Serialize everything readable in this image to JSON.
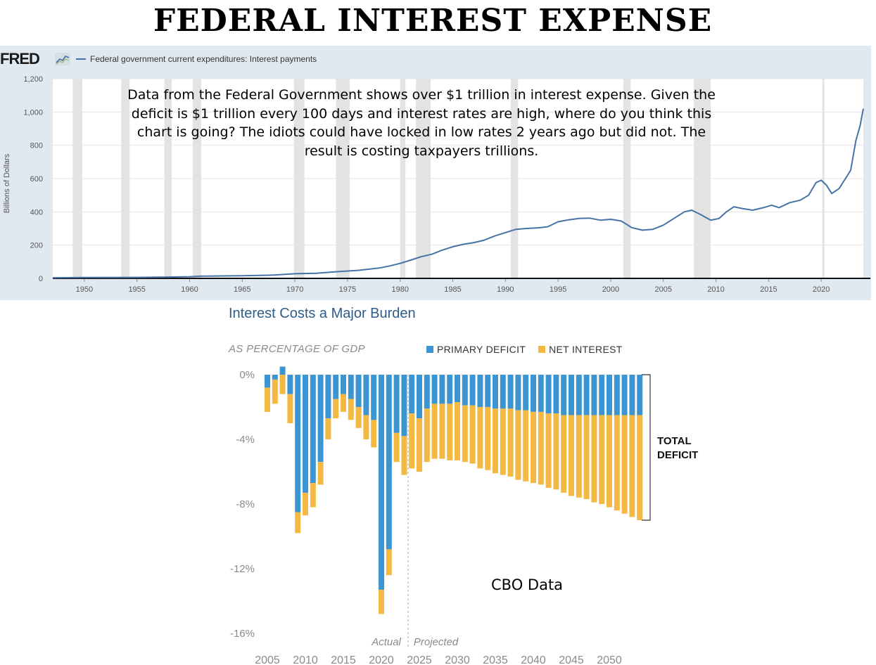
{
  "page_title": "FEDERAL INTEREST EXPENSE",
  "fred": {
    "logo": "FRED",
    "logo_icon": "chart-trend-icon",
    "legend_label": "Federal government current expenditures: Interest payments",
    "annotation": "Data from the Federal Government shows over $1 trillion in interest expense. Given the deficit is $1 trillion every 100 days and interest rates are high, where do you think this chart is going? The idiots could have locked in low rates 2 years ago but did not. The result is costing taxpayers trillions."
  },
  "cbo": {
    "title": "Interest Costs a Major Burden",
    "subtitle": "AS PERCENTAGE OF GDP",
    "legend": [
      {
        "label": "PRIMARY DEFICIT",
        "color": "#3b95d3"
      },
      {
        "label": "NET INTEREST",
        "color": "#f4b942"
      }
    ],
    "total_label_line1": "TOTAL",
    "total_label_line2": "DEFICIT",
    "actual_label": "Actual",
    "projected_label": "Projected",
    "note": "CBO Data"
  },
  "chart_data": [
    {
      "type": "line",
      "ylabel": "Billions of Dollars",
      "ylim": [
        0,
        1200
      ],
      "yticks": [
        "0",
        "200",
        "400",
        "600",
        "800",
        "1,000",
        "1,200"
      ],
      "xlim": [
        1947,
        2024
      ],
      "xticks": [
        "1950",
        "1955",
        "1960",
        "1965",
        "1970",
        "1975",
        "1980",
        "1985",
        "1990",
        "1995",
        "2000",
        "2005",
        "2010",
        "2015",
        "2020"
      ],
      "grid": true,
      "line_color": "#4572a7",
      "recession_shading": [
        [
          1948.9,
          1949.8
        ],
        [
          1953.5,
          1954.3
        ],
        [
          1957.6,
          1958.3
        ],
        [
          1960.3,
          1961.1
        ],
        [
          1969.9,
          1970.9
        ],
        [
          1973.9,
          1975.2
        ],
        [
          1980.0,
          1980.5
        ],
        [
          1981.5,
          1982.9
        ],
        [
          1990.5,
          1991.2
        ],
        [
          2001.2,
          2001.9
        ],
        [
          2007.9,
          2009.5
        ],
        [
          2020.1,
          2020.3
        ]
      ],
      "series": [
        {
          "name": "Federal government current expenditures: Interest payments",
          "points": [
            [
              1947,
              4
            ],
            [
              1950,
              5
            ],
            [
              1955,
              6
            ],
            [
              1958,
              8
            ],
            [
              1960,
              10
            ],
            [
              1961,
              13
            ],
            [
              1965,
              16
            ],
            [
              1968,
              20
            ],
            [
              1970,
              28
            ],
            [
              1972,
              31
            ],
            [
              1974,
              40
            ],
            [
              1976,
              48
            ],
            [
              1978,
              62
            ],
            [
              1979,
              75
            ],
            [
              1980,
              90
            ],
            [
              1981,
              110
            ],
            [
              1982,
              130
            ],
            [
              1983,
              145
            ],
            [
              1984,
              170
            ],
            [
              1985,
              190
            ],
            [
              1986,
              205
            ],
            [
              1987,
              215
            ],
            [
              1988,
              230
            ],
            [
              1989,
              255
            ],
            [
              1990,
              275
            ],
            [
              1991,
              295
            ],
            [
              1992,
              300
            ],
            [
              1993,
              303
            ],
            [
              1994,
              310
            ],
            [
              1995,
              340
            ],
            [
              1996,
              352
            ],
            [
              1997,
              360
            ],
            [
              1998,
              362
            ],
            [
              1999,
              350
            ],
            [
              2000,
              355
            ],
            [
              2001,
              345
            ],
            [
              2002,
              305
            ],
            [
              2003,
              290
            ],
            [
              2004,
              295
            ],
            [
              2005,
              320
            ],
            [
              2006,
              360
            ],
            [
              2007,
              400
            ],
            [
              2007.7,
              410
            ],
            [
              2008.5,
              385
            ],
            [
              2009.5,
              350
            ],
            [
              2010.3,
              360
            ],
            [
              2011,
              400
            ],
            [
              2011.7,
              430
            ],
            [
              2012.5,
              420
            ],
            [
              2013.5,
              410
            ],
            [
              2014.5,
              425
            ],
            [
              2015.3,
              440
            ],
            [
              2016,
              425
            ],
            [
              2017,
              455
            ],
            [
              2018,
              470
            ],
            [
              2018.8,
              500
            ],
            [
              2019.5,
              575
            ],
            [
              2020,
              590
            ],
            [
              2020.5,
              560
            ],
            [
              2021,
              510
            ],
            [
              2021.7,
              540
            ],
            [
              2022.3,
              600
            ],
            [
              2022.8,
              650
            ],
            [
              2023.3,
              830
            ],
            [
              2023.7,
              920
            ],
            [
              2024,
              1020
            ]
          ]
        }
      ]
    },
    {
      "type": "bar",
      "stacked": true,
      "ylabel": "",
      "ylim": [
        -16,
        0.5
      ],
      "yticks": [
        "0%",
        "-4%",
        "-8%",
        "-12%",
        "-16%"
      ],
      "xticks": [
        "2005",
        "2010",
        "2015",
        "2020",
        "2025",
        "2030",
        "2035",
        "2040",
        "2045",
        "2050"
      ],
      "categories": [
        2005,
        2006,
        2007,
        2008,
        2009,
        2010,
        2011,
        2012,
        2013,
        2014,
        2015,
        2016,
        2017,
        2018,
        2019,
        2020,
        2021,
        2022,
        2023,
        2024,
        2025,
        2026,
        2027,
        2028,
        2029,
        2030,
        2031,
        2032,
        2033,
        2034,
        2035,
        2036,
        2037,
        2038,
        2039,
        2040,
        2041,
        2042,
        2043,
        2044,
        2045,
        2046,
        2047,
        2048,
        2049,
        2050,
        2051,
        2052,
        2053,
        2054
      ],
      "actual_through": 2023,
      "series": [
        {
          "name": "PRIMARY DEFICIT",
          "color": "#3b95d3",
          "values": [
            -0.8,
            -0.3,
            0.5,
            -1.2,
            -8.5,
            -7.3,
            -6.7,
            -5.4,
            -2.7,
            -1.5,
            -1.2,
            -1.5,
            -2.0,
            -2.5,
            -2.8,
            -13.3,
            -10.8,
            -3.6,
            -3.8,
            -2.4,
            -2.7,
            -2.1,
            -1.8,
            -1.8,
            -1.8,
            -1.7,
            -1.9,
            -1.9,
            -2.0,
            -2.0,
            -2.1,
            -2.1,
            -2.1,
            -2.2,
            -2.2,
            -2.3,
            -2.3,
            -2.4,
            -2.4,
            -2.5,
            -2.5,
            -2.5,
            -2.5,
            -2.5,
            -2.5,
            -2.5,
            -2.5,
            -2.5,
            -2.5,
            -2.5
          ]
        },
        {
          "name": "NET INTEREST",
          "color": "#f4b942",
          "values": [
            -1.5,
            -1.5,
            -1.2,
            -1.8,
            -1.3,
            -1.4,
            -1.5,
            -1.4,
            -1.3,
            -1.2,
            -1.1,
            -1.3,
            -1.3,
            -1.5,
            -1.7,
            -1.5,
            -1.6,
            -1.8,
            -2.4,
            -3.4,
            -3.3,
            -3.3,
            -3.4,
            -3.4,
            -3.5,
            -3.6,
            -3.5,
            -3.6,
            -3.8,
            -3.9,
            -4.0,
            -4.1,
            -4.2,
            -4.3,
            -4.4,
            -4.4,
            -4.5,
            -4.6,
            -4.7,
            -4.8,
            -5.0,
            -5.1,
            -5.2,
            -5.4,
            -5.5,
            -5.7,
            -5.9,
            -6.1,
            -6.3,
            -6.5
          ]
        }
      ]
    }
  ]
}
